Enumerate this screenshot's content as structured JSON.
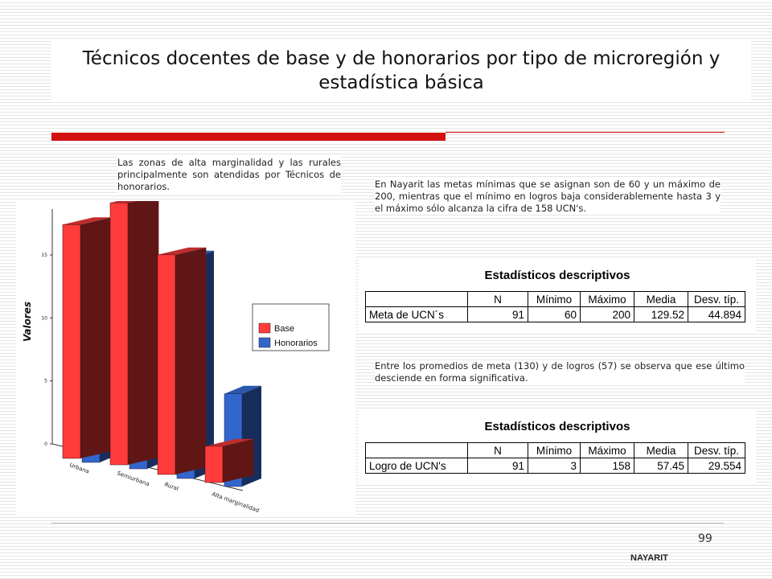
{
  "title": "Técnicos docentes de base y de honorarios por tipo de microregión y estadística básica",
  "notes": {
    "left": "Las zonas de alta marginalidad y las rurales principalmente son atendidas por Técnicos de honorarios.",
    "right": "En Nayarit las metas mínimas que se asignan son de 60 y un máximo de 200, mientras que el mínimo en logros baja considerablemente hasta 3 y el máximo sólo alcanza la cifra de 158 UCN's.",
    "bottom": "Entre los promedios de meta (130) y de logros (57) se observa que ese último desciende en forma significativa."
  },
  "colors": {
    "base": "#ff3b3b",
    "honorarios": "#3366cc",
    "accent": "#d21010"
  },
  "chart_data": {
    "type": "bar",
    "ylabel": "Valores",
    "yticks": [
      "0",
      "5",
      "10",
      "15"
    ],
    "ylim": [
      0,
      18
    ],
    "categories": [
      "Urbana",
      "Semiurbana",
      "Rural",
      "Alta marginalidad"
    ],
    "series": [
      {
        "name": "Base",
        "values": [
          16,
          18,
          15,
          2
        ],
        "color": "#ff3b3b"
      },
      {
        "name": "Honorarios",
        "values": [
          1,
          11,
          15,
          6
        ],
        "color": "#3366cc"
      }
    ],
    "legend_position": "right"
  },
  "stats_meta": {
    "title": "Estadísticos descriptivos",
    "headers": [
      "",
      "N",
      "Mínimo",
      "Máximo",
      "Media",
      "Desv. típ."
    ],
    "row": [
      "Meta de UCN´s",
      "91",
      "60",
      "200",
      "129.52",
      "44.894"
    ]
  },
  "stats_logro": {
    "title": "Estadísticos descriptivos",
    "headers": [
      "",
      "N",
      "Mínimo",
      "Máximo",
      "Media",
      "Desv. típ."
    ],
    "row": [
      "Logro de UCN's",
      "91",
      "3",
      "158",
      "57.45",
      "29.554"
    ]
  },
  "page_number": "99",
  "footer_label": "NAYARIT"
}
